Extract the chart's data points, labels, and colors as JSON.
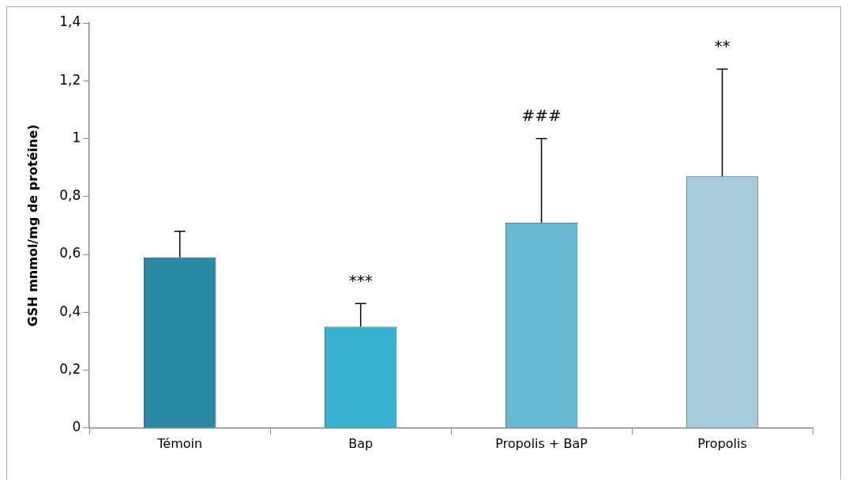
{
  "chart_data": {
    "type": "bar",
    "ylabel": "GSH mnmol/mg de protéine)",
    "categories": [
      "Témoin",
      "Bap",
      "Propolis + BaP",
      "Propolis"
    ],
    "values": [
      0.59,
      0.35,
      0.71,
      0.87
    ],
    "colors": [
      "#2a8aa4",
      "#38b0d0",
      "#68b8d4",
      "#a6ccdc"
    ],
    "errors": [
      [
        0.59,
        0.68
      ],
      [
        0.35,
        0.43
      ],
      [
        0.71,
        1.0
      ],
      [
        0.87,
        1.24
      ]
    ],
    "ylim": [
      0,
      1.4
    ],
    "yticks": [
      {
        "value": 0,
        "label": "0"
      },
      {
        "value": 0.2,
        "label": "0,2"
      },
      {
        "value": 0.4,
        "label": "0,4"
      },
      {
        "value": 0.6,
        "label": "0,6"
      },
      {
        "value": 0.8,
        "label": "0,8"
      },
      {
        "value": 1,
        "label": "1"
      },
      {
        "value": 1.2,
        "label": "1,2"
      },
      {
        "value": 1.4,
        "label": "1,4"
      }
    ],
    "annotations": [
      {
        "text": "***",
        "x": "Bap",
        "y": 0.43
      },
      {
        "text": "###",
        "x": "Propolis + BaP",
        "y": 1.0
      },
      {
        "text": "**",
        "x": "Propolis",
        "y": 1.24
      }
    ],
    "grid": false,
    "legend": false
  }
}
